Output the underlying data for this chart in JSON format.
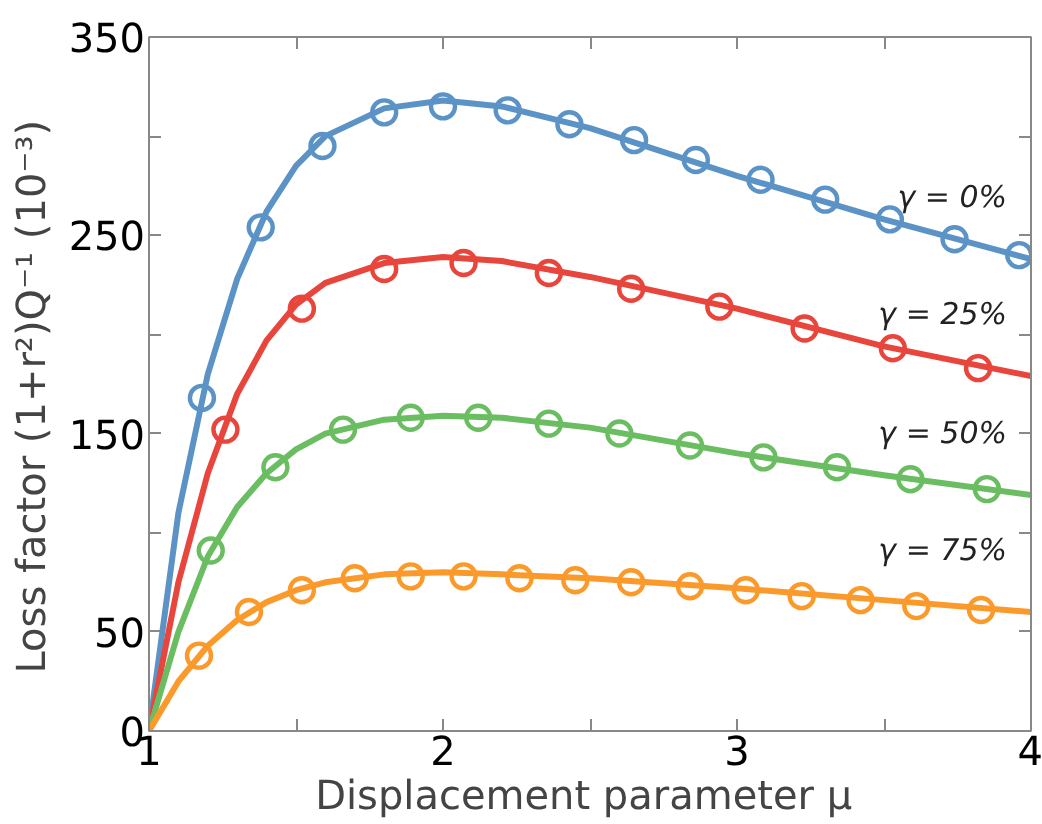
{
  "chart_data": {
    "type": "line",
    "xlabel": "Displacement parameter  μ",
    "ylabel": "Loss factor  (1+r²)Q⁻¹  (10⁻³)",
    "xlim": [
      1,
      4
    ],
    "ylim": [
      0,
      350
    ],
    "xticks": [
      1,
      {
        "value": 1.5,
        "label": null
      },
      2,
      {
        "value": 2.5,
        "label": null
      },
      3,
      {
        "value": 3.5,
        "label": null
      },
      4
    ],
    "yticks": [
      0,
      50,
      {
        "value": 100,
        "label": null
      },
      150,
      {
        "value": 200,
        "label": null
      },
      250,
      {
        "value": 300,
        "label": null
      },
      350
    ],
    "grid": false,
    "series": [
      {
        "name": "γ = 0%",
        "color": "#5b93c7",
        "marker": "none",
        "x": [
          1,
          1.1,
          1.2,
          1.3,
          1.4,
          1.5,
          1.6,
          1.8,
          2.0,
          2.2,
          2.5,
          3.0,
          3.5,
          4.0
        ],
        "values": [
          0,
          110,
          180,
          228,
          262,
          285,
          300,
          314,
          318,
          315,
          304,
          280,
          258,
          238
        ]
      },
      {
        "name": "γ = 25%",
        "color": "#e8453c",
        "marker": "none",
        "x": [
          1,
          1.1,
          1.2,
          1.3,
          1.4,
          1.5,
          1.6,
          1.8,
          2.0,
          2.2,
          2.5,
          3.0,
          3.5,
          4.0
        ],
        "values": [
          0,
          75,
          130,
          170,
          197,
          215,
          226,
          236,
          239,
          237,
          229,
          213,
          194,
          179
        ]
      },
      {
        "name": "γ = 50%",
        "color": "#6bbd62",
        "marker": "none",
        "x": [
          1,
          1.1,
          1.2,
          1.3,
          1.4,
          1.5,
          1.6,
          1.8,
          2.0,
          2.2,
          2.5,
          3.0,
          3.5,
          4.0
        ],
        "values": [
          0,
          50,
          88,
          113,
          130,
          142,
          150,
          157,
          159,
          158,
          153,
          140,
          129,
          119
        ]
      },
      {
        "name": "γ = 75%",
        "color": "#fb9a2b",
        "marker": "none",
        "x": [
          1,
          1.1,
          1.2,
          1.3,
          1.4,
          1.5,
          1.6,
          1.8,
          2.0,
          2.2,
          2.5,
          3.0,
          3.5,
          4.0
        ],
        "values": [
          0,
          25,
          43,
          56,
          65,
          71,
          75,
          79,
          80,
          79,
          77,
          72,
          66,
          60
        ]
      },
      {
        "type": "scatter",
        "color": "#5b93c7",
        "marker": "circle",
        "x": [
          1.18,
          1.38,
          1.59,
          1.8,
          2.0,
          2.22,
          2.43,
          2.65,
          2.86,
          3.08,
          3.3,
          3.52,
          3.74,
          3.96
        ],
        "values": [
          168,
          254,
          295,
          312,
          315,
          313,
          306,
          298,
          288,
          278,
          268,
          258,
          248,
          240
        ]
      },
      {
        "type": "scatter",
        "color": "#e8453c",
        "marker": "circle",
        "x": [
          1.26,
          1.52,
          1.8,
          2.07,
          2.36,
          2.64,
          2.94,
          3.23,
          3.53,
          3.82
        ],
        "values": [
          152,
          213,
          233,
          236,
          231,
          223,
          214,
          203,
          193,
          183
        ]
      },
      {
        "type": "scatter",
        "color": "#6bbd62",
        "marker": "circle",
        "x": [
          1.21,
          1.43,
          1.66,
          1.89,
          2.12,
          2.36,
          2.6,
          2.84,
          3.09,
          3.34,
          3.59,
          3.85
        ],
        "values": [
          91,
          133,
          152,
          158,
          158,
          155,
          150,
          144,
          138,
          133,
          127,
          122
        ]
      },
      {
        "type": "scatter",
        "color": "#fb9a2b",
        "marker": "circle",
        "x": [
          1.17,
          1.34,
          1.52,
          1.7,
          1.89,
          2.07,
          2.26,
          2.45,
          2.64,
          2.84,
          3.03,
          3.22,
          3.42,
          3.61,
          3.83
        ],
        "values": [
          38,
          60,
          71,
          77,
          78,
          78,
          77,
          76,
          75,
          73,
          71,
          68,
          66,
          63,
          61
        ]
      }
    ]
  }
}
